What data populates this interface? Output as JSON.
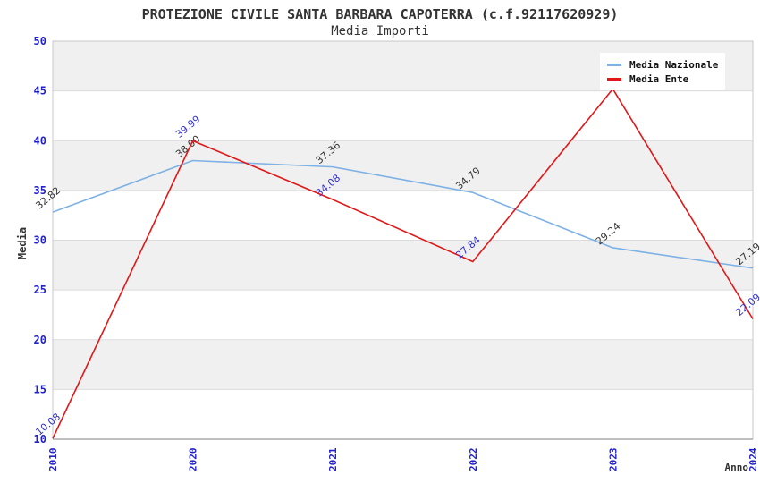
{
  "header": {
    "title": "PROTEZIONE CIVILE SANTA BARBARA CAPOTERRA (c.f.92117620929)",
    "subtitle": "Media Importi"
  },
  "style": {
    "band_fill": "#F0F0F0",
    "grid_color": "#DCDCDC",
    "border_color": "#C9C9C9",
    "axis_line_color": "#999999",
    "tick_label_color": "#2222CC",
    "text_color": "#333333"
  },
  "chart_data": {
    "type": "line",
    "title": "PROTEZIONE CIVILE SANTA BARBARA CAPOTERRA (c.f.92117620929)",
    "subtitle": "Media Importi",
    "xlabel": "Anno",
    "ylabel": "Media",
    "categories": [
      "2010",
      "2020",
      "2021",
      "2022",
      "2023",
      "2024"
    ],
    "ylim": [
      10,
      50
    ],
    "yticks": [
      10,
      15,
      20,
      25,
      30,
      35,
      40,
      45,
      50
    ],
    "grid": true,
    "plot_bands": "alternating-grey-white",
    "legend_position": "top-right",
    "series": [
      {
        "name": "Media Nazionale",
        "color": "#7EB1E4",
        "label_color": "#333333",
        "values": [
          32.82,
          38.0,
          37.36,
          34.79,
          29.24,
          27.19
        ],
        "point_labels": [
          "32.82",
          "38.00",
          "37.36",
          "34.79",
          "29.24",
          "27.19"
        ]
      },
      {
        "name": "Media Ente",
        "color": "#E01818",
        "label_color": "#3333CC",
        "values": [
          10.08,
          39.99,
          34.08,
          27.84,
          45.2,
          22.09
        ],
        "point_labels": [
          "10.08",
          "39.99",
          "34.08",
          "27.84",
          "",
          "22.09"
        ]
      }
    ]
  }
}
